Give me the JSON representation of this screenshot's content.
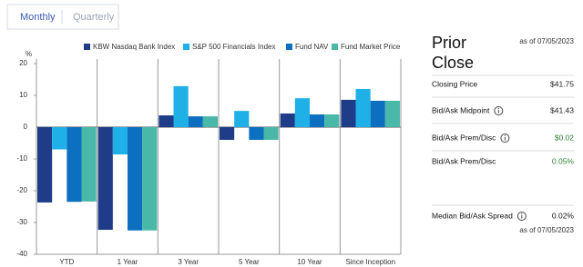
{
  "tabs": [
    {
      "label": "Monthly",
      "color": "#3b5bb5"
    },
    {
      "label": "Quarterly",
      "color": "#9aa3b5"
    }
  ],
  "chart_data": {
    "type": "bar",
    "y_label": "%",
    "categories": [
      "YTD",
      "1 Year",
      "3 Year",
      "5 Year",
      "10 Year",
      "Since Inception"
    ],
    "series": [
      {
        "name": "KBW Nasdaq Bank Index",
        "color": "#1f3c88",
        "values": [
          -23.7,
          -32.3,
          3.7,
          -4,
          4.3,
          8.6
        ]
      },
      {
        "name": "S&P 500 Financials Index",
        "color": "#1fb0e8",
        "values": [
          -7,
          -8.6,
          12.9,
          5.1,
          9.1,
          12
        ]
      },
      {
        "name": "Fund NAV",
        "color": "#0c6fc0",
        "values": [
          -23.5,
          -32.5,
          3.4,
          -4,
          4,
          8.3
        ]
      },
      {
        "name": "Fund Market Price",
        "color": "#4ab8a8",
        "values": [
          -23.4,
          -32.5,
          3.4,
          -4,
          4,
          8.3
        ]
      }
    ],
    "ylim": [
      -40,
      20
    ],
    "yticks": [
      20,
      10,
      0,
      -10,
      -20,
      -30,
      -40
    ]
  },
  "panel": {
    "title": [
      "Prior",
      "Close"
    ],
    "as_of": "as of 07/05/2023",
    "rows": [
      {
        "label": "Closing Price",
        "value": "$41.75",
        "color": "#222222",
        "info": false
      },
      {
        "label": "Bid/Ask Midpoint",
        "value": "$41.43",
        "color": "#222222",
        "info": true
      },
      {
        "label": "Bid/Ask Prem/Disc",
        "value": "$0.02",
        "color": "#2e7d32",
        "info": true
      },
      {
        "label": "Bid/Ask Prem/Disc",
        "value": "0.05%",
        "color": "#2e7d32",
        "info": false
      }
    ],
    "spread": {
      "label": "Median Bid/Ask Spread",
      "value": "0.02%",
      "as_of": "as of 07/05/2023"
    }
  }
}
